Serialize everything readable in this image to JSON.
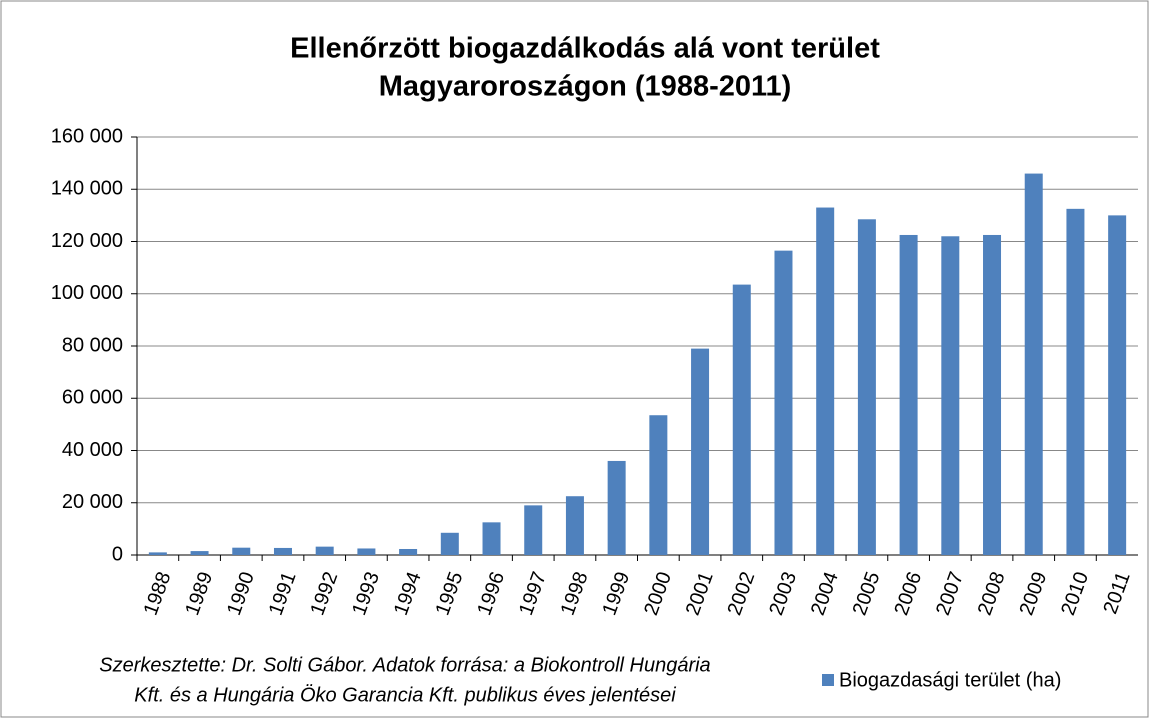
{
  "chart_data": {
    "type": "bar",
    "title": [
      "Ellenőrzött biogazdálkodás alá vont terület",
      "Magyaroroszágon (1988-2011)"
    ],
    "note": [
      "Szerkesztette: Dr. Solti Gábor. Adatok forrása: a Biokontroll Hungária",
      "Kft. és a Hungária Öko Garancia Kft. publikus éves jelentései"
    ],
    "categories": [
      "1988",
      "1989",
      "1990",
      "1991",
      "1992",
      "1993",
      "1994",
      "1995",
      "1996",
      "1997",
      "1998",
      "1999",
      "2000",
      "2001",
      "2002",
      "2003",
      "2004",
      "2005",
      "2006",
      "2007",
      "2008",
      "2009",
      "2010",
      "2011"
    ],
    "series": [
      {
        "name": "Biogazdasági terület (ha)",
        "color": "#4f81bd",
        "values": [
          1000,
          1500,
          2800,
          2700,
          3200,
          2500,
          2300,
          8500,
          12500,
          19000,
          22500,
          36000,
          53500,
          79000,
          103500,
          116500,
          133000,
          128500,
          122500,
          122000,
          122500,
          146000,
          132500,
          130000
        ]
      }
    ],
    "ylim": [
      0,
      160000
    ],
    "yticks": [
      0,
      {
        "value": 20000,
        "label": "20 000"
      },
      {
        "value": 40000,
        "label": "40 000"
      },
      {
        "value": 60000,
        "label": "60 000"
      },
      {
        "value": 80000,
        "label": "80 000"
      },
      {
        "value": 100000,
        "label": "100 000"
      },
      {
        "value": 120000,
        "label": "120 000"
      },
      {
        "value": 140000,
        "label": "140 000"
      },
      {
        "value": 160000,
        "label": "160 000"
      }
    ],
    "grid": true,
    "legend": "bottom-right"
  }
}
